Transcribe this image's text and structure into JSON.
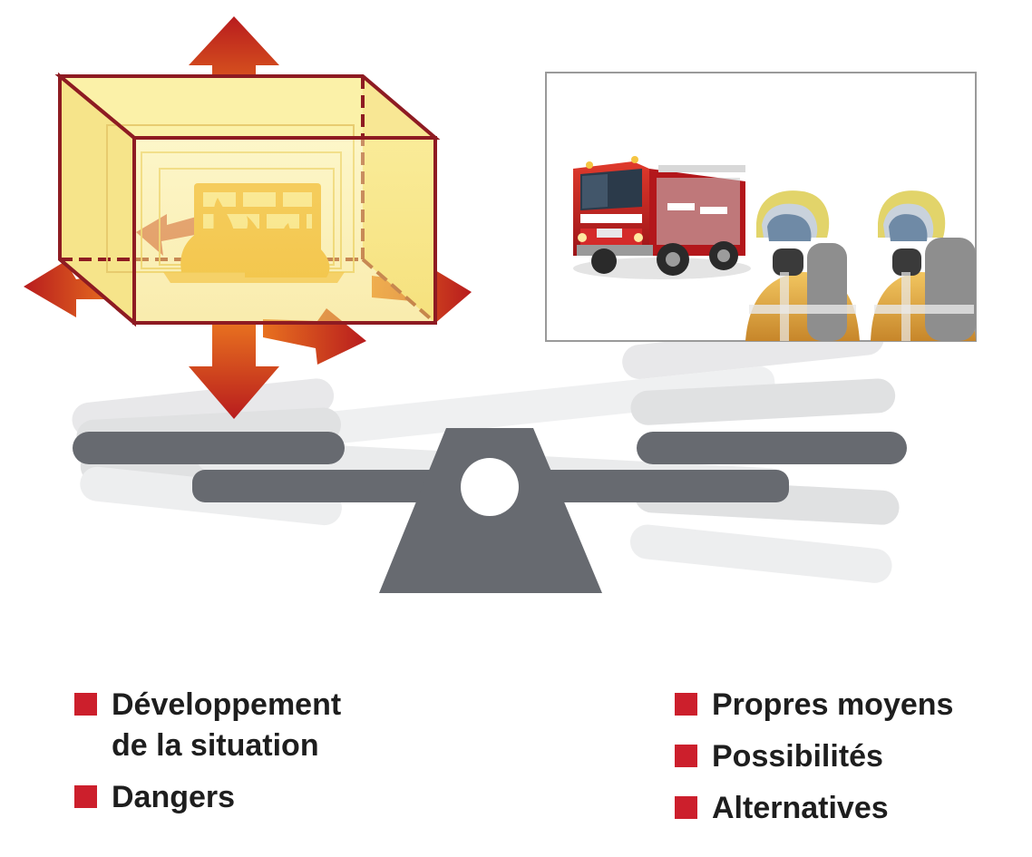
{
  "colors": {
    "accent_red": "#cc1f2c",
    "arrow_dark": "#b81c1e",
    "arrow_light": "#e8711f",
    "box_stroke": "#8e1b22",
    "box_fill": "#f9e98a",
    "flame": "#f0a81e",
    "balance": "#676a70",
    "balance_ghost": "#d6d7d9"
  },
  "icons": {
    "fire_box": "burning-building-icon",
    "response": "fire-engine-and-firefighters-icon",
    "balance": "seesaw-scale-icon",
    "bullet": "square-bullet-icon"
  },
  "legend_left": {
    "items": [
      {
        "label": "Développement\nde la situation"
      },
      {
        "label": "Dangers"
      }
    ]
  },
  "legend_right": {
    "items": [
      {
        "label": "Propres moyens"
      },
      {
        "label": "Possibilités"
      },
      {
        "label": "Alternatives"
      }
    ]
  }
}
